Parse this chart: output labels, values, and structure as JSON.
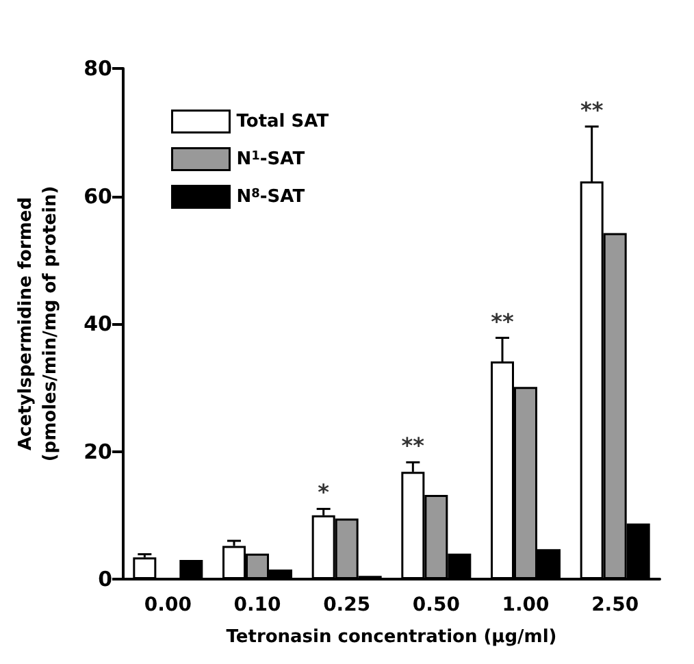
{
  "chart_data": {
    "type": "bar",
    "xlabel": "Tetronasin concentration (μg/ml)",
    "ylabel": "Acetylspermidine formed\n(pmoles/min/mg of protein)",
    "categories": [
      "0.00",
      "0.10",
      "0.25",
      "0.50",
      "1.00",
      "2.50"
    ],
    "series": [
      {
        "name": "Total SAT",
        "color": "#ffffff",
        "values": [
          3.4,
          5.2,
          10,
          16.8,
          34.1,
          62.3
        ],
        "errors": [
          [
            3.4,
            3.9
          ],
          [
            5.2,
            6.0
          ],
          [
            10,
            11
          ],
          [
            16.8,
            18.3
          ],
          [
            34.1,
            37.8
          ],
          [
            62.3,
            70.9
          ]
        ]
      },
      {
        "name": "N$^{1}$-SAT",
        "color": "#999999",
        "values": [
          null,
          4.0,
          9.5,
          13.2,
          30.1,
          54.2
        ]
      },
      {
        "name": "N$^{8}$-SAT",
        "color": "#000000",
        "values": [
          3.0,
          1.5,
          0.5,
          4.0,
          4.7,
          8.7
        ]
      }
    ],
    "ylim": [
      0,
      80
    ],
    "yticks": [
      0,
      20,
      40,
      60,
      80
    ],
    "grid": false,
    "legend": "top left",
    "annotations": [
      "*",
      "**",
      "**",
      "**"
    ]
  }
}
